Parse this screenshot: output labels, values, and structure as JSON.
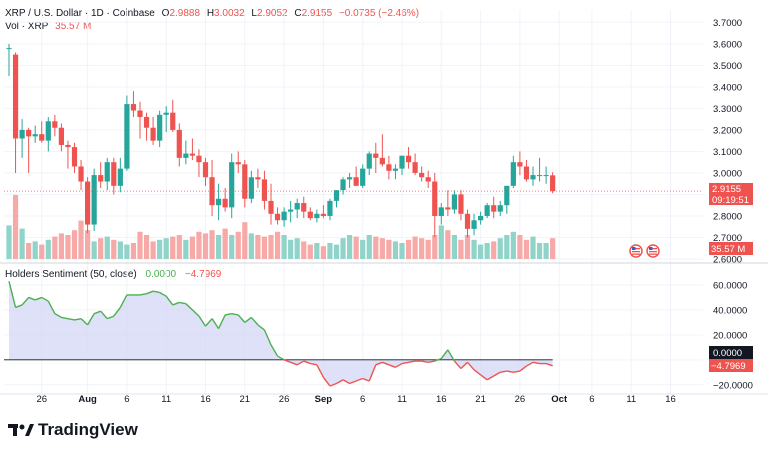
{
  "header": {
    "symbol": "XRP / U.S. Dollar · 1D · Coinbase",
    "o_label": "O",
    "o": "2.9888",
    "h_label": "H",
    "h": "3.0032",
    "l_label": "L",
    "l": "2.9052",
    "c_label": "C",
    "c": "2.9155",
    "change": "−0.0735 (−2.46%)",
    "vol_label": "Vol · XRP",
    "vol": "35.57 M"
  },
  "indicator": {
    "title": "Holders Sentiment (50, close)",
    "v1": "0.0000",
    "v2": "−4.7969"
  },
  "price_badge": {
    "price": "2.9155",
    "countdown": "09:19:51"
  },
  "volume_badge": "35.57 M",
  "indicator_badges": {
    "zero": "0.0000",
    "value": "−4.7969"
  },
  "logo_text": "TradingView",
  "colors": {
    "up": "#26a69a",
    "down": "#ef5350",
    "line": "#4caf50",
    "fill_pos": "#d6d9f5",
    "fill_neg": "#d6d9f5"
  },
  "chart_data": [
    {
      "type": "candlestick",
      "title": "XRP / U.S. Dollar · 1D · Coinbase",
      "y_ticks": [
        "3.7000",
        "3.6000",
        "3.5000",
        "3.4000",
        "3.3000",
        "3.2000",
        "3.1000",
        "3.0000",
        "2.9000",
        "2.8000",
        "2.7000",
        "2.6000"
      ],
      "ylim": [
        2.6,
        3.72
      ],
      "x_tick_labels": [
        "26",
        "Aug",
        "6",
        "11",
        "16",
        "21",
        "26",
        "Sep",
        "6",
        "11",
        "16",
        "21",
        "26",
        "Oct",
        "6",
        "11",
        "16"
      ],
      "candles": [
        {
          "o": 3.58,
          "h": 3.6,
          "l": 3.45,
          "c": 3.58
        },
        {
          "o": 3.55,
          "h": 3.56,
          "l": 3.0,
          "c": 3.16
        },
        {
          "o": 3.16,
          "h": 3.25,
          "l": 3.07,
          "c": 3.2
        },
        {
          "o": 3.2,
          "h": 3.21,
          "l": 3.0,
          "c": 3.17
        },
        {
          "o": 3.17,
          "h": 3.22,
          "l": 3.14,
          "c": 3.18
        },
        {
          "o": 3.18,
          "h": 3.24,
          "l": 3.14,
          "c": 3.15
        },
        {
          "o": 3.15,
          "h": 3.26,
          "l": 3.1,
          "c": 3.24
        },
        {
          "o": 3.24,
          "h": 3.27,
          "l": 3.17,
          "c": 3.21
        },
        {
          "o": 3.21,
          "h": 3.23,
          "l": 3.1,
          "c": 3.13
        },
        {
          "o": 3.13,
          "h": 3.15,
          "l": 3.02,
          "c": 3.12
        },
        {
          "o": 3.12,
          "h": 3.14,
          "l": 3.0,
          "c": 3.03
        },
        {
          "o": 3.03,
          "h": 3.06,
          "l": 2.92,
          "c": 2.96
        },
        {
          "o": 2.96,
          "h": 2.98,
          "l": 2.72,
          "c": 2.76
        },
        {
          "o": 2.76,
          "h": 3.02,
          "l": 2.73,
          "c": 2.99
        },
        {
          "o": 2.99,
          "h": 3.05,
          "l": 2.93,
          "c": 2.96
        },
        {
          "o": 2.96,
          "h": 3.07,
          "l": 2.92,
          "c": 3.05
        },
        {
          "o": 3.05,
          "h": 3.07,
          "l": 2.9,
          "c": 2.94
        },
        {
          "o": 2.94,
          "h": 3.07,
          "l": 2.91,
          "c": 3.02
        },
        {
          "o": 3.02,
          "h": 3.36,
          "l": 3.01,
          "c": 3.32
        },
        {
          "o": 3.32,
          "h": 3.38,
          "l": 3.26,
          "c": 3.29
        },
        {
          "o": 3.29,
          "h": 3.33,
          "l": 3.16,
          "c": 3.26
        },
        {
          "o": 3.26,
          "h": 3.28,
          "l": 3.15,
          "c": 3.21
        },
        {
          "o": 3.21,
          "h": 3.26,
          "l": 3.13,
          "c": 3.15
        },
        {
          "o": 3.15,
          "h": 3.29,
          "l": 3.12,
          "c": 3.27
        },
        {
          "o": 3.27,
          "h": 3.31,
          "l": 3.19,
          "c": 3.28
        },
        {
          "o": 3.28,
          "h": 3.34,
          "l": 3.19,
          "c": 3.2
        },
        {
          "o": 3.2,
          "h": 3.23,
          "l": 3.03,
          "c": 3.07
        },
        {
          "o": 3.07,
          "h": 3.15,
          "l": 3.04,
          "c": 3.09
        },
        {
          "o": 3.09,
          "h": 3.16,
          "l": 3.06,
          "c": 3.08
        },
        {
          "o": 3.08,
          "h": 3.11,
          "l": 2.98,
          "c": 3.05
        },
        {
          "o": 3.05,
          "h": 3.07,
          "l": 2.94,
          "c": 2.98
        },
        {
          "o": 2.98,
          "h": 3.06,
          "l": 2.8,
          "c": 2.85
        },
        {
          "o": 2.85,
          "h": 2.95,
          "l": 2.78,
          "c": 2.88
        },
        {
          "o": 2.88,
          "h": 2.93,
          "l": 2.82,
          "c": 2.84
        },
        {
          "o": 2.84,
          "h": 3.09,
          "l": 2.79,
          "c": 3.05
        },
        {
          "o": 3.05,
          "h": 3.1,
          "l": 3.0,
          "c": 3.04
        },
        {
          "o": 3.04,
          "h": 3.06,
          "l": 2.84,
          "c": 2.88
        },
        {
          "o": 2.88,
          "h": 3.01,
          "l": 2.86,
          "c": 2.98
        },
        {
          "o": 2.98,
          "h": 3.02,
          "l": 2.93,
          "c": 2.97
        },
        {
          "o": 2.97,
          "h": 3.01,
          "l": 2.83,
          "c": 2.87
        },
        {
          "o": 2.87,
          "h": 2.95,
          "l": 2.76,
          "c": 2.81
        },
        {
          "o": 2.81,
          "h": 2.84,
          "l": 2.76,
          "c": 2.78
        },
        {
          "o": 2.78,
          "h": 2.84,
          "l": 2.75,
          "c": 2.82
        },
        {
          "o": 2.82,
          "h": 2.87,
          "l": 2.77,
          "c": 2.83
        },
        {
          "o": 2.83,
          "h": 2.88,
          "l": 2.79,
          "c": 2.86
        },
        {
          "o": 2.86,
          "h": 2.89,
          "l": 2.79,
          "c": 2.82
        },
        {
          "o": 2.82,
          "h": 2.84,
          "l": 2.78,
          "c": 2.79
        },
        {
          "o": 2.79,
          "h": 2.83,
          "l": 2.77,
          "c": 2.81
        },
        {
          "o": 2.81,
          "h": 2.85,
          "l": 2.79,
          "c": 2.8
        },
        {
          "o": 2.8,
          "h": 2.88,
          "l": 2.78,
          "c": 2.87
        },
        {
          "o": 2.87,
          "h": 2.92,
          "l": 2.84,
          "c": 2.92
        },
        {
          "o": 2.92,
          "h": 2.98,
          "l": 2.9,
          "c": 2.97
        },
        {
          "o": 2.97,
          "h": 3.0,
          "l": 2.93,
          "c": 2.98
        },
        {
          "o": 2.98,
          "h": 3.03,
          "l": 2.94,
          "c": 2.94
        },
        {
          "o": 2.94,
          "h": 3.04,
          "l": 2.93,
          "c": 3.02
        },
        {
          "o": 3.02,
          "h": 3.1,
          "l": 2.99,
          "c": 3.09
        },
        {
          "o": 3.09,
          "h": 3.14,
          "l": 3.0,
          "c": 3.07
        },
        {
          "o": 3.07,
          "h": 3.18,
          "l": 3.03,
          "c": 3.04
        },
        {
          "o": 3.04,
          "h": 3.08,
          "l": 2.97,
          "c": 3.01
        },
        {
          "o": 3.01,
          "h": 3.04,
          "l": 2.97,
          "c": 3.02
        },
        {
          "o": 3.02,
          "h": 3.08,
          "l": 2.99,
          "c": 3.08
        },
        {
          "o": 3.08,
          "h": 3.12,
          "l": 3.02,
          "c": 3.05
        },
        {
          "o": 3.05,
          "h": 3.09,
          "l": 2.99,
          "c": 3.0
        },
        {
          "o": 3.0,
          "h": 3.03,
          "l": 2.96,
          "c": 2.98
        },
        {
          "o": 2.98,
          "h": 3.01,
          "l": 2.93,
          "c": 2.96
        },
        {
          "o": 2.96,
          "h": 3.0,
          "l": 2.7,
          "c": 2.8
        },
        {
          "o": 2.8,
          "h": 2.86,
          "l": 2.76,
          "c": 2.84
        },
        {
          "o": 2.84,
          "h": 2.92,
          "l": 2.8,
          "c": 2.83
        },
        {
          "o": 2.83,
          "h": 2.92,
          "l": 2.81,
          "c": 2.9
        },
        {
          "o": 2.9,
          "h": 2.92,
          "l": 2.78,
          "c": 2.81
        },
        {
          "o": 2.81,
          "h": 2.83,
          "l": 2.7,
          "c": 2.74
        },
        {
          "o": 2.74,
          "h": 2.81,
          "l": 2.71,
          "c": 2.78
        },
        {
          "o": 2.78,
          "h": 2.82,
          "l": 2.76,
          "c": 2.8
        },
        {
          "o": 2.8,
          "h": 2.86,
          "l": 2.79,
          "c": 2.85
        },
        {
          "o": 2.85,
          "h": 2.89,
          "l": 2.79,
          "c": 2.82
        },
        {
          "o": 2.82,
          "h": 2.87,
          "l": 2.8,
          "c": 2.85
        },
        {
          "o": 2.85,
          "h": 2.94,
          "l": 2.81,
          "c": 2.94
        },
        {
          "o": 2.94,
          "h": 3.08,
          "l": 2.93,
          "c": 3.05
        },
        {
          "o": 3.05,
          "h": 3.1,
          "l": 2.99,
          "c": 3.03
        },
        {
          "o": 3.03,
          "h": 3.06,
          "l": 2.96,
          "c": 2.97
        },
        {
          "o": 2.97,
          "h": 3.03,
          "l": 2.94,
          "c": 2.99
        },
        {
          "o": 2.99,
          "h": 3.07,
          "l": 2.96,
          "c": 2.99
        },
        {
          "o": 2.99,
          "h": 3.03,
          "l": 2.95,
          "c": 2.99
        },
        {
          "o": 2.9888,
          "h": 3.0032,
          "l": 2.9052,
          "c": 2.9155
        }
      ]
    },
    {
      "type": "bar",
      "title": "Vol · XRP",
      "values": [
        42,
        80,
        38,
        20,
        22,
        18,
        24,
        28,
        32,
        30,
        36,
        48,
        36,
        22,
        26,
        28,
        24,
        22,
        18,
        20,
        34,
        30,
        22,
        24,
        26,
        28,
        30,
        24,
        28,
        34,
        32,
        36,
        30,
        38,
        30,
        34,
        46,
        32,
        30,
        28,
        30,
        34,
        30,
        24,
        26,
        22,
        18,
        20,
        16,
        20,
        18,
        26,
        30,
        28,
        24,
        30,
        28,
        26,
        24,
        22,
        20,
        24,
        28,
        26,
        24,
        30,
        42,
        36,
        30,
        24,
        30,
        24,
        18,
        20,
        22,
        26,
        30,
        34,
        30,
        24,
        28,
        20,
        20,
        26
      ],
      "last_value_label": "35.57 M"
    },
    {
      "type": "area",
      "title": "Holders Sentiment (50, close)",
      "y_ticks": [
        "60.0000",
        "40.0000",
        "20.0000",
        "0.0000",
        "−20.0000"
      ],
      "ylim": [
        -25,
        68
      ],
      "values": [
        63,
        42,
        44,
        50,
        48,
        50,
        47,
        37,
        34,
        33,
        32,
        33,
        28,
        37,
        39,
        33,
        35,
        42,
        52,
        52,
        52,
        53,
        55,
        54,
        51,
        44,
        46,
        45,
        40,
        35,
        27,
        33,
        25,
        36,
        37,
        36,
        30,
        34,
        28,
        24,
        12,
        3,
        0,
        -2,
        -4,
        -1,
        -3,
        -4,
        -14,
        -21,
        -19,
        -16,
        -19,
        -17,
        -15,
        -17,
        -4,
        -2,
        -4,
        -6,
        -3,
        -2,
        -1,
        -1,
        -2,
        -1,
        1,
        8,
        -1,
        -7,
        -2,
        -8,
        -12,
        -16,
        -13,
        -10,
        -9,
        -10,
        -9,
        -5,
        -2,
        -3,
        -3,
        -4.7969
      ],
      "last_value_label": "−4.7969"
    }
  ]
}
